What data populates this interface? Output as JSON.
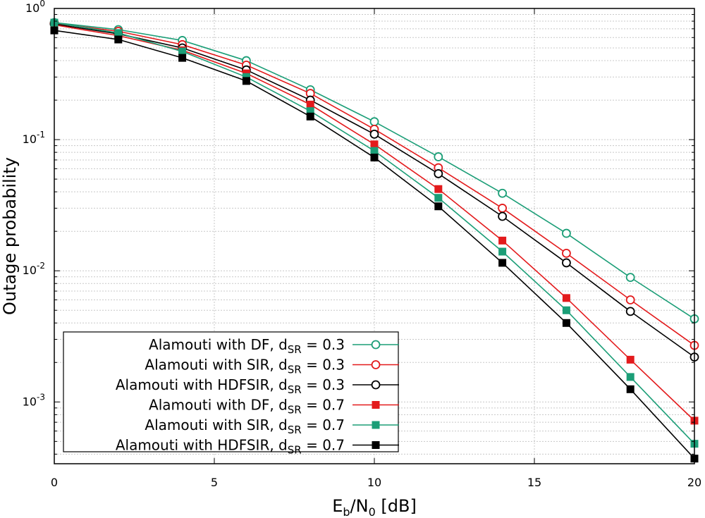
{
  "chart_data": {
    "type": "line",
    "xlabel": {
      "base": "E",
      "sub1": "b",
      "mid": "/N",
      "sub2": "0",
      "tail": " [dB]"
    },
    "ylabel": "Outage probability",
    "yscale": "log",
    "xlim": [
      0,
      20
    ],
    "ylim": [
      0.0003,
      1
    ],
    "grid": true,
    "legend_position": "bottom-left",
    "x_ticks": [
      "0",
      "5",
      "10",
      "15",
      "20"
    ],
    "x_tick_values": [
      0,
      5,
      10,
      15,
      20
    ],
    "y_ticks": [
      {
        "value": 1,
        "base": "10",
        "exp": "0"
      },
      {
        "value": 0.1,
        "base": "10",
        "exp": "-1"
      },
      {
        "value": 0.01,
        "base": "10",
        "exp": "-2"
      },
      {
        "value": 0.001,
        "base": "10",
        "exp": "-3"
      }
    ],
    "x": [
      0,
      2,
      4,
      6,
      8,
      10,
      12,
      14,
      16,
      18,
      20
    ],
    "series": [
      {
        "name": "Alamouti with DF, dSR = 0.3",
        "label_prefix": "Alamouti with DF, d",
        "label_sub": "SR",
        "label_suffix": " = 0.3",
        "color": "#1b9e77",
        "marker": "circle-open",
        "values": [
          0.78,
          0.69,
          0.57,
          0.4,
          0.24,
          0.137,
          0.074,
          0.039,
          0.0193,
          0.0089,
          0.0043
        ]
      },
      {
        "name": "Alamouti with SIR, dSR = 0.3",
        "label_prefix": "Alamouti with SIR, d",
        "label_sub": "SR",
        "label_suffix": " = 0.3",
        "color": "#e31a1c",
        "marker": "circle-open",
        "values": [
          0.77,
          0.67,
          0.53,
          0.37,
          0.225,
          0.12,
          0.061,
          0.03,
          0.0136,
          0.006,
          0.0027
        ]
      },
      {
        "name": "Alamouti with HDFSIR, dSR = 0.3",
        "label_prefix": "Alamouti with HDFSIR, d",
        "label_sub": "SR",
        "label_suffix": " = 0.3",
        "color": "#000000",
        "marker": "circle-open",
        "values": [
          0.76,
          0.64,
          0.5,
          0.34,
          0.2,
          0.11,
          0.055,
          0.026,
          0.0115,
          0.0049,
          0.0022
        ]
      },
      {
        "name": "Alamouti with DF, dSR = 0.7",
        "label_prefix": "Alamouti with DF, d",
        "label_sub": "SR",
        "label_suffix": " = 0.7",
        "color": "#e31a1c",
        "marker": "square-filled",
        "values": [
          0.75,
          0.62,
          0.48,
          0.32,
          0.185,
          0.092,
          0.042,
          0.017,
          0.0062,
          0.0021,
          0.00072
        ]
      },
      {
        "name": "Alamouti with SIR, dSR = 0.7",
        "label_prefix": "Alamouti with SIR, d",
        "label_sub": "SR",
        "label_suffix": " = 0.7",
        "color": "#1b9e77",
        "marker": "square-filled",
        "values": [
          0.78,
          0.65,
          0.47,
          0.3,
          0.165,
          0.082,
          0.036,
          0.014,
          0.005,
          0.00155,
          0.00048
        ]
      },
      {
        "name": "Alamouti with HDFSIR, dSR = 0.7",
        "label_prefix": "Alamouti with HDFSIR, d",
        "label_sub": "SR",
        "label_suffix": " = 0.7",
        "color": "#000000",
        "marker": "square-filled",
        "values": [
          0.68,
          0.58,
          0.42,
          0.28,
          0.15,
          0.073,
          0.031,
          0.0115,
          0.004,
          0.00125,
          0.00037
        ]
      }
    ]
  }
}
